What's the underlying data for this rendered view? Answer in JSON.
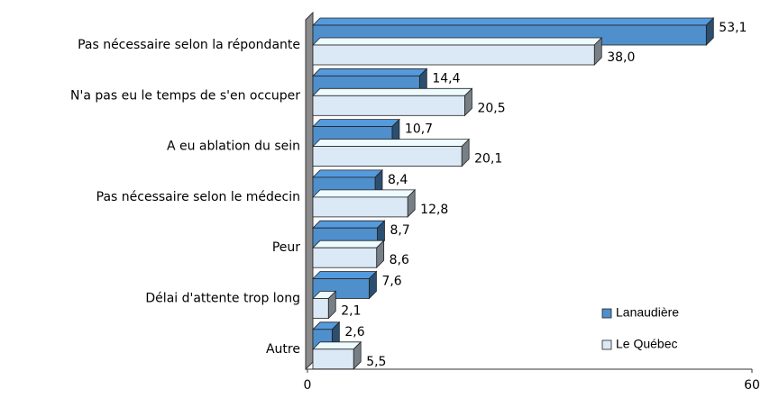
{
  "chart_data": {
    "type": "bar",
    "orientation": "horizontal",
    "categories": [
      "Pas nécessaire selon la répondante",
      "N'a pas eu le temps de s'en occuper",
      "A eu ablation du sein",
      "Pas nécessaire selon le médecin",
      "Peur",
      "Délai d'attente trop long",
      "Autre"
    ],
    "series": [
      {
        "name": "Lanaudière",
        "color": "#4f8fcc",
        "values": [
          53.1,
          14.4,
          10.7,
          8.4,
          8.7,
          7.6,
          2.6
        ],
        "value_labels": [
          "53,1",
          "14,4",
          "10,7",
          "8,4",
          "8,7",
          "7,6",
          "2,6"
        ]
      },
      {
        "name": "Le Québec",
        "color": "#dbe8f5",
        "values": [
          38.0,
          20.5,
          20.1,
          12.8,
          8.6,
          2.1,
          5.5
        ],
        "value_labels": [
          "38,0",
          "20,5",
          "20,1",
          "12,8",
          "8,6",
          "2,1",
          "5,5"
        ]
      }
    ],
    "xlim": [
      0,
      60
    ],
    "xticks": [
      0,
      60
    ],
    "legend": "lower right"
  }
}
